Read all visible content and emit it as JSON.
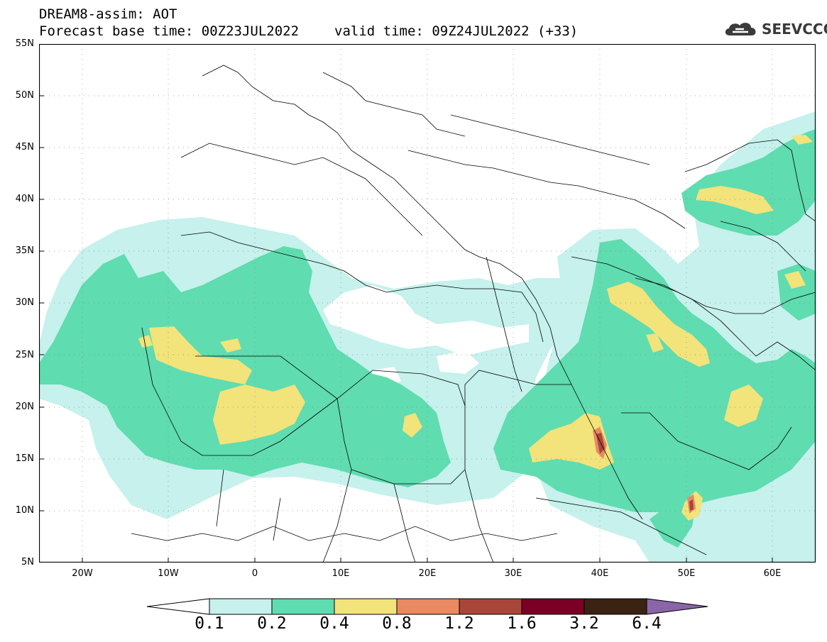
{
  "header": {
    "title": "DREAM8-assim: AOT",
    "base_time": "Forecast base time: 00Z23JUL2022",
    "valid_time": "valid time: 09Z24JUL2022 (+33)",
    "logo_text": "SEEVCCC"
  },
  "map": {
    "lat_labels": [
      "55N",
      "50N",
      "45N",
      "40N",
      "35N",
      "30N",
      "25N",
      "20N",
      "15N",
      "10N",
      "5N"
    ],
    "lon_labels": [
      "20W",
      "10W",
      "0",
      "10E",
      "20E",
      "30E",
      "40E",
      "50E",
      "60E"
    ],
    "lon_range": [
      -25,
      65
    ],
    "lat_range": [
      5,
      55
    ]
  },
  "colorbar": {
    "levels": [
      "0.1",
      "0.2",
      "0.4",
      "0.8",
      "1.2",
      "1.6",
      "3.2",
      "6.4"
    ],
    "colors": [
      "#ffffff",
      "#c6f1ec",
      "#5fdcb0",
      "#f2e37a",
      "#e98a63",
      "#a9463a",
      "#7a0025",
      "#3a2312",
      "#8a66a8"
    ]
  }
}
